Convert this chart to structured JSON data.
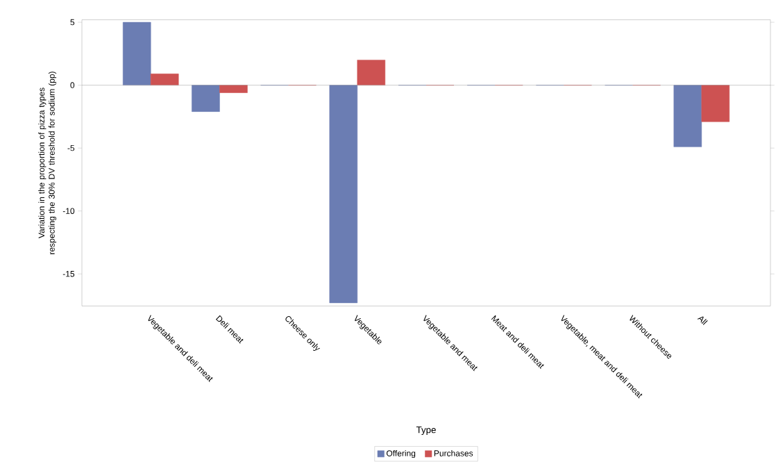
{
  "chart_data": {
    "type": "bar",
    "xlabel": "Type",
    "ylabel": "Variation in the proportion of pizza types respecting the 30% DV threshold for sodium (pp)",
    "categories": [
      "Vegetable and deli meat",
      "Deli meat",
      "Cheese only",
      "Vegetable",
      "Vegetable and meat",
      "Meat and deli meat",
      "Vegetable, meat and deli meat",
      "Without cheese",
      "All"
    ],
    "series": [
      {
        "name": "Offering",
        "color": "#6b7db3",
        "values": [
          5.0,
          -2.1,
          0,
          -17.3,
          0,
          0,
          0,
          0,
          -4.9
        ]
      },
      {
        "name": "Purchases",
        "color": "#cd5252",
        "values": [
          0.9,
          -0.6,
          0,
          2.0,
          0,
          0,
          0,
          0,
          -2.9
        ]
      }
    ],
    "ylim": [
      -17.55,
      5.2
    ],
    "yticks": [
      -15,
      -10,
      -5,
      0,
      5
    ],
    "ref_lines": [
      {
        "axis": "y",
        "value": 0,
        "color": "#a0a0a0"
      }
    ],
    "legend": "bottom"
  }
}
